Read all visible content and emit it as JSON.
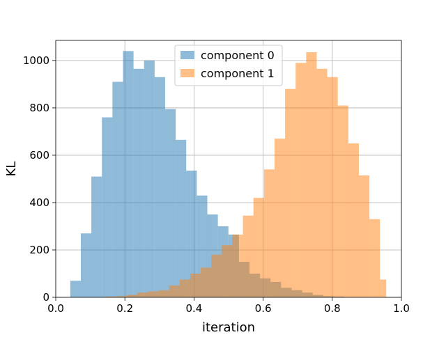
{
  "chart_data": {
    "type": "bar",
    "subtype": "overlapping-histogram",
    "title": "",
    "xlabel": "iteration",
    "ylabel": "KL",
    "xlim": [
      0.0,
      1.0
    ],
    "ylim": [
      0,
      1085
    ],
    "x_ticks": [
      "0.0",
      "0.2",
      "0.4",
      "0.6",
      "0.8",
      "1.0"
    ],
    "x_tick_values": [
      0.0,
      0.2,
      0.4,
      0.6,
      0.8,
      1.0
    ],
    "y_ticks": [
      "0",
      "200",
      "400",
      "600",
      "800",
      "1000"
    ],
    "y_tick_values": [
      0,
      200,
      400,
      600,
      800,
      1000
    ],
    "grid": true,
    "legend_position": "top-center",
    "series": [
      {
        "name": "component 0",
        "color": "#1f77b4",
        "alpha": 0.5,
        "bin_edges": [
          0.042,
          0.0725,
          0.103,
          0.1335,
          0.164,
          0.1945,
          0.225,
          0.2555,
          0.286,
          0.3165,
          0.347,
          0.3775,
          0.408,
          0.4385,
          0.469,
          0.4995,
          0.53,
          0.5605,
          0.591,
          0.6215,
          0.652,
          0.6825,
          0.713,
          0.7435,
          0.774,
          0.8045,
          0.835
        ],
        "counts": [
          70,
          270,
          510,
          760,
          910,
          1040,
          965,
          1000,
          930,
          795,
          665,
          535,
          430,
          350,
          300,
          265,
          150,
          100,
          80,
          65,
          40,
          30,
          20,
          10,
          5,
          3
        ]
      },
      {
        "name": "component 1",
        "color": "#ff7f0e",
        "alpha": 0.5,
        "bin_edges": [
          0.145,
          0.1755,
          0.206,
          0.2365,
          0.267,
          0.2975,
          0.328,
          0.3585,
          0.389,
          0.4195,
          0.45,
          0.4805,
          0.511,
          0.5415,
          0.572,
          0.6025,
          0.633,
          0.6635,
          0.694,
          0.7245,
          0.755,
          0.7855,
          0.816,
          0.8465,
          0.877,
          0.9075,
          0.938,
          0.956
        ],
        "counts": [
          3,
          5,
          10,
          20,
          25,
          30,
          50,
          75,
          100,
          125,
          180,
          220,
          265,
          345,
          420,
          540,
          670,
          880,
          990,
          1035,
          965,
          930,
          810,
          650,
          515,
          330,
          75
        ]
      }
    ]
  }
}
